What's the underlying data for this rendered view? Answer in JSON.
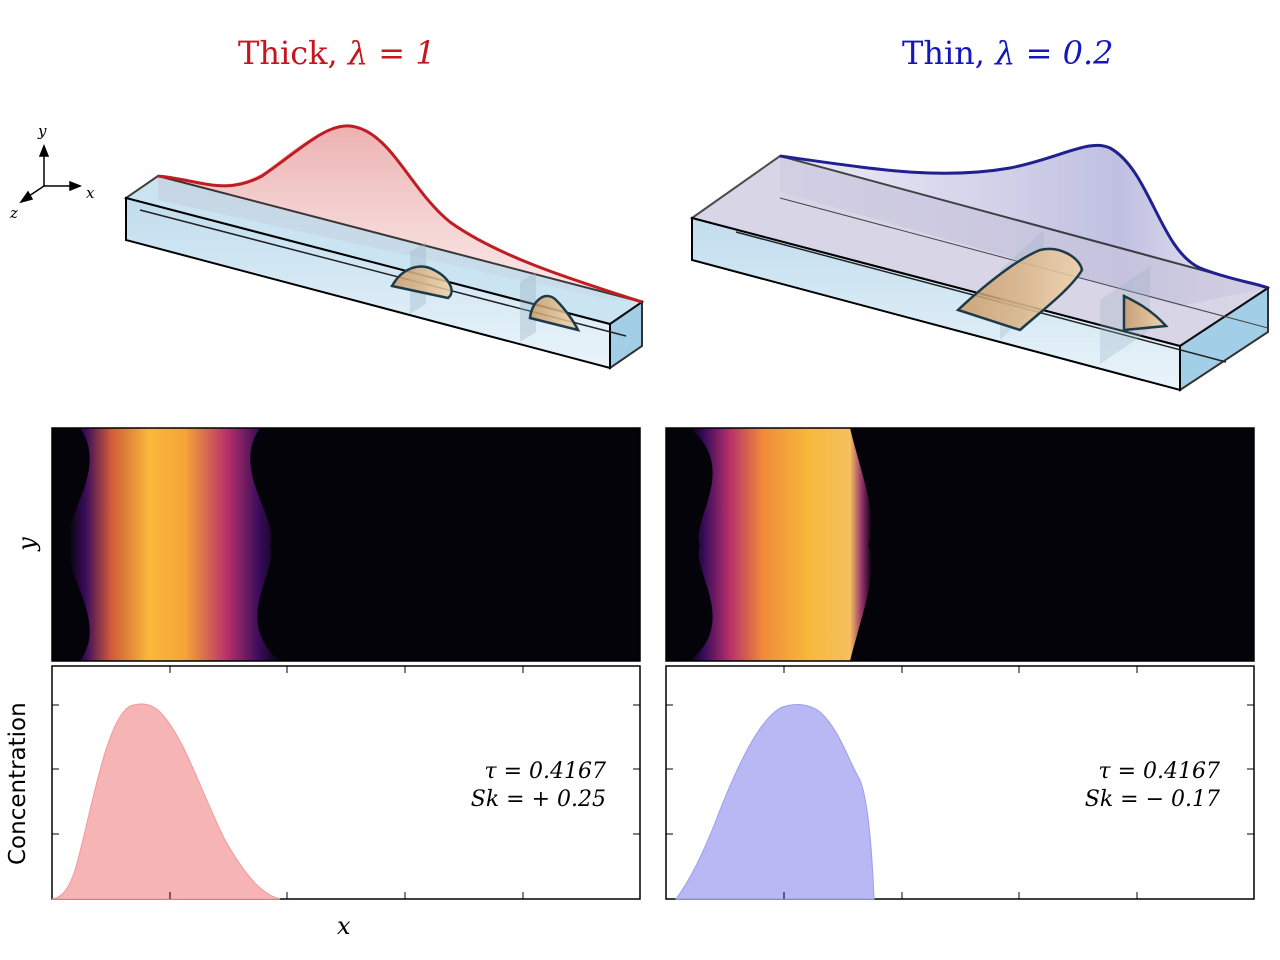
{
  "titles": {
    "left": {
      "text": "Thick,",
      "math": "λ = 1"
    },
    "right": {
      "text": "Thin,",
      "math": "λ = 0.2"
    }
  },
  "axes_icon": {
    "x": "x",
    "y": "y",
    "z": "z"
  },
  "panels": {
    "left": {
      "tau": "τ = 0.4167",
      "sk": "Sk = + 0.25",
      "fill_color": "#f7b8b8"
    },
    "right": {
      "tau": "τ = 0.4167",
      "sk": "Sk = − 0.17",
      "fill_color": "#b8b8f5"
    }
  },
  "labels": {
    "ylabel_image": "y",
    "ylabel_conc": "Concentration",
    "xlabel": "x"
  },
  "colors": {
    "thick": "#c8141e",
    "thin": "#1616c0"
  }
}
